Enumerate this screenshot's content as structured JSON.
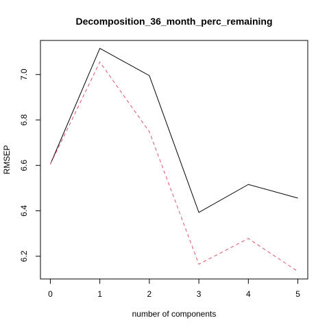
{
  "chart_data": {
    "type": "line",
    "title": "Decomposition_36_month_perc_remaining",
    "xlabel": "number of components",
    "ylabel": "RMSEP",
    "x": [
      0,
      1,
      2,
      3,
      4,
      5
    ],
    "xlim": [
      -0.2,
      5.2
    ],
    "ylim": [
      6.1,
      7.15
    ],
    "xticks": [
      "0",
      "1",
      "2",
      "3",
      "4",
      "5"
    ],
    "yticks": [
      "6.2",
      "6.4",
      "6.6",
      "6.8",
      "7.0"
    ],
    "grid": false,
    "legend": "none",
    "series": [
      {
        "values": [
          6.605,
          7.115,
          6.995,
          6.393,
          6.516,
          6.456
        ],
        "color": "#000000",
        "dash": "solid"
      },
      {
        "values": [
          6.605,
          7.055,
          6.748,
          6.165,
          6.278,
          6.133
        ],
        "color": "#DF536B",
        "dash": "dashed"
      }
    ]
  }
}
